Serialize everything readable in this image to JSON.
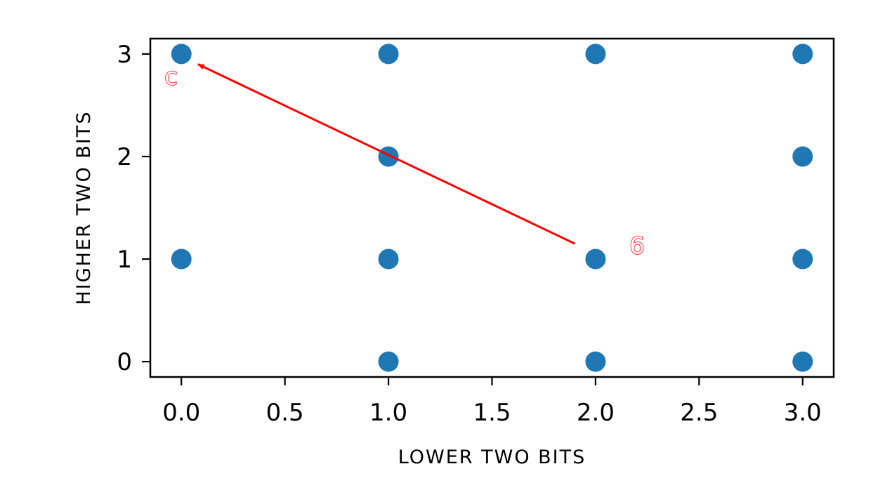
{
  "chart_data": {
    "type": "scatter",
    "xlabel": "LOWER TWO BITS",
    "ylabel": "HIGHER TWO BITS",
    "xlim": [
      -0.15,
      3.15
    ],
    "ylim": [
      -0.15,
      3.15
    ],
    "xticks": [
      0.0,
      0.5,
      1.0,
      1.5,
      2.0,
      2.5,
      3.0
    ],
    "xtick_labels": [
      "0.0",
      "0.5",
      "1.0",
      "1.5",
      "2.0",
      "2.5",
      "3.0"
    ],
    "yticks": [
      0,
      1,
      2,
      3
    ],
    "ytick_labels": [
      "0",
      "1",
      "2",
      "3"
    ],
    "grid": false,
    "point_color": "#1f77b4",
    "points": [
      {
        "x": 0,
        "y": 3
      },
      {
        "x": 0,
        "y": 1
      },
      {
        "x": 1,
        "y": 3
      },
      {
        "x": 1,
        "y": 2
      },
      {
        "x": 1,
        "y": 1
      },
      {
        "x": 1,
        "y": 0
      },
      {
        "x": 2,
        "y": 3
      },
      {
        "x": 2,
        "y": 1
      },
      {
        "x": 2,
        "y": 0
      },
      {
        "x": 3,
        "y": 3
      },
      {
        "x": 3,
        "y": 2
      },
      {
        "x": 3,
        "y": 1
      },
      {
        "x": 3,
        "y": 0
      }
    ],
    "annotation": {
      "color": "#ff0000",
      "from_label": "6",
      "to_label": "c",
      "arrow_from": {
        "x": 1.9,
        "y": 1.15
      },
      "arrow_to": {
        "x": 0.08,
        "y": 2.9
      },
      "from_label_pos": {
        "x": 2.2,
        "y": 1.05
      },
      "to_label_pos": {
        "x": -0.05,
        "y": 2.7
      }
    }
  }
}
